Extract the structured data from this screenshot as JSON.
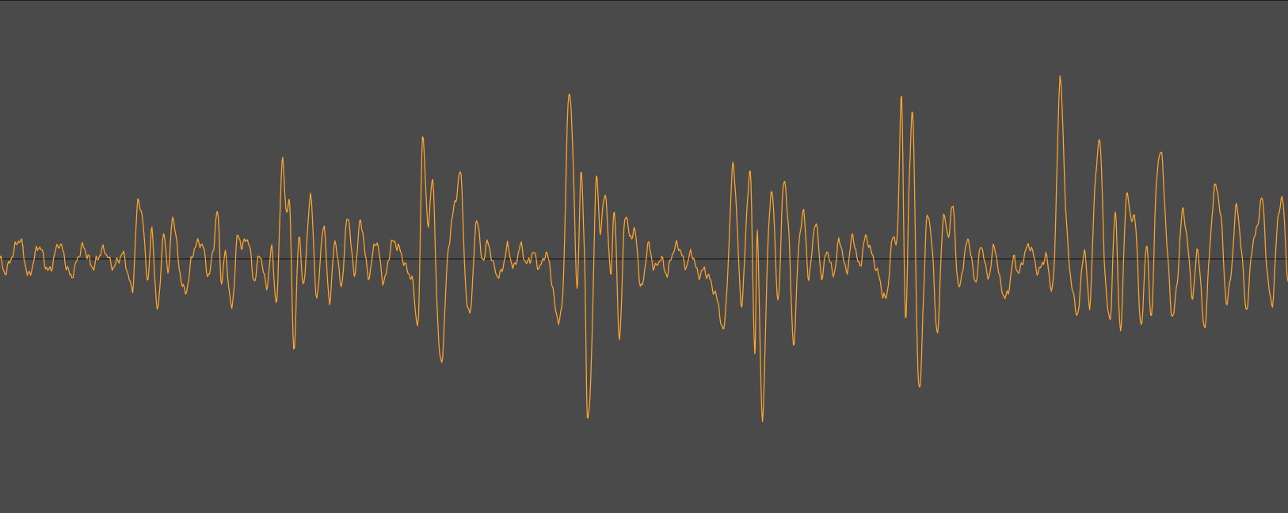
{
  "waveform": {
    "background_color": "#4a4a4a",
    "waveform_color": "#ffa52e",
    "zero_line_color": "#111111",
    "amplitude_range": [
      -1,
      1
    ],
    "keypoints": [
      [
        0.0,
        0.0
      ],
      [
        0.004,
        -0.07
      ],
      [
        0.01,
        0.03
      ],
      [
        0.016,
        0.1
      ],
      [
        0.022,
        -0.09
      ],
      [
        0.03,
        0.07
      ],
      [
        0.038,
        -0.07
      ],
      [
        0.046,
        0.08
      ],
      [
        0.055,
        -0.09
      ],
      [
        0.064,
        0.06
      ],
      [
        0.072,
        -0.04
      ],
      [
        0.08,
        0.05
      ],
      [
        0.088,
        -0.04
      ],
      [
        0.096,
        0.02
      ],
      [
        0.103,
        -0.15
      ],
      [
        0.107,
        0.3
      ],
      [
        0.111,
        0.18
      ],
      [
        0.115,
        -0.11
      ],
      [
        0.118,
        0.16
      ],
      [
        0.122,
        -0.28
      ],
      [
        0.127,
        0.12
      ],
      [
        0.131,
        -0.06
      ],
      [
        0.134,
        0.23
      ],
      [
        0.139,
        -0.04
      ],
      [
        0.144,
        -0.18
      ],
      [
        0.15,
        0.04
      ],
      [
        0.157,
        0.08
      ],
      [
        0.162,
        -0.09
      ],
      [
        0.166,
        0.08
      ],
      [
        0.169,
        0.24
      ],
      [
        0.172,
        -0.12
      ],
      [
        0.175,
        0.03
      ],
      [
        0.18,
        -0.27
      ],
      [
        0.184,
        0.1
      ],
      [
        0.188,
        0.07
      ],
      [
        0.193,
        0.1
      ],
      [
        0.197,
        -0.11
      ],
      [
        0.202,
        0.02
      ],
      [
        0.207,
        -0.15
      ],
      [
        0.211,
        0.05
      ],
      [
        0.215,
        -0.22
      ],
      [
        0.219,
        0.53
      ],
      [
        0.222,
        0.25
      ],
      [
        0.225,
        0.28
      ],
      [
        0.228,
        -0.48
      ],
      [
        0.232,
        0.1
      ],
      [
        0.236,
        -0.14
      ],
      [
        0.241,
        0.34
      ],
      [
        0.246,
        -0.21
      ],
      [
        0.251,
        0.18
      ],
      [
        0.256,
        -0.22
      ],
      [
        0.26,
        0.1
      ],
      [
        0.265,
        -0.14
      ],
      [
        0.27,
        0.23
      ],
      [
        0.275,
        -0.08
      ],
      [
        0.28,
        0.2
      ],
      [
        0.286,
        -0.09
      ],
      [
        0.292,
        0.1
      ],
      [
        0.298,
        -0.12
      ],
      [
        0.304,
        0.08
      ],
      [
        0.31,
        0.05
      ],
      [
        0.316,
        -0.06
      ],
      [
        0.32,
        -0.11
      ],
      [
        0.325,
        -0.31
      ],
      [
        0.328,
        0.66
      ],
      [
        0.332,
        0.18
      ],
      [
        0.336,
        0.41
      ],
      [
        0.34,
        -0.35
      ],
      [
        0.343,
        -0.55
      ],
      [
        0.347,
        -0.06
      ],
      [
        0.35,
        0.17
      ],
      [
        0.354,
        0.32
      ],
      [
        0.358,
        0.43
      ],
      [
        0.362,
        -0.21
      ],
      [
        0.366,
        -0.22
      ],
      [
        0.37,
        0.22
      ],
      [
        0.374,
        0.0
      ],
      [
        0.379,
        0.08
      ],
      [
        0.384,
        -0.06
      ],
      [
        0.389,
        -0.08
      ],
      [
        0.394,
        0.06
      ],
      [
        0.399,
        -0.05
      ],
      [
        0.404,
        0.07
      ],
      [
        0.409,
        -0.03
      ],
      [
        0.414,
        0.03
      ],
      [
        0.419,
        -0.05
      ],
      [
        0.424,
        0.03
      ],
      [
        0.428,
        -0.09
      ],
      [
        0.432,
        -0.3
      ],
      [
        0.437,
        -0.19
      ],
      [
        0.441,
        0.8
      ],
      [
        0.444,
        0.72
      ],
      [
        0.448,
        -0.15
      ],
      [
        0.451,
        0.44
      ],
      [
        0.454,
        -0.02
      ],
      [
        0.456,
        -0.85
      ],
      [
        0.459,
        -0.55
      ],
      [
        0.463,
        0.43
      ],
      [
        0.466,
        0.14
      ],
      [
        0.47,
        0.36
      ],
      [
        0.474,
        -0.08
      ],
      [
        0.477,
        0.25
      ],
      [
        0.481,
        -0.42
      ],
      [
        0.485,
        0.22
      ],
      [
        0.489,
        0.11
      ],
      [
        0.493,
        0.14
      ],
      [
        0.498,
        -0.16
      ],
      [
        0.503,
        0.07
      ],
      [
        0.508,
        -0.05
      ],
      [
        0.513,
        0.0
      ],
      [
        0.518,
        -0.08
      ],
      [
        0.522,
        0.03
      ],
      [
        0.527,
        0.07
      ],
      [
        0.532,
        -0.04
      ],
      [
        0.537,
        0.03
      ],
      [
        0.542,
        -0.08
      ],
      [
        0.547,
        -0.06
      ],
      [
        0.552,
        -0.13
      ],
      [
        0.558,
        -0.25
      ],
      [
        0.562,
        -0.38
      ],
      [
        0.566,
        0.06
      ],
      [
        0.569,
        0.52
      ],
      [
        0.572,
        0.2
      ],
      [
        0.576,
        -0.25
      ],
      [
        0.58,
        0.28
      ],
      [
        0.583,
        0.4
      ],
      [
        0.586,
        -0.5
      ],
      [
        0.588,
        0.12
      ],
      [
        0.592,
        -0.87
      ],
      [
        0.596,
        0.05
      ],
      [
        0.6,
        0.34
      ],
      [
        0.604,
        -0.24
      ],
      [
        0.608,
        0.38
      ],
      [
        0.612,
        0.2
      ],
      [
        0.616,
        -0.45
      ],
      [
        0.62,
        0.05
      ],
      [
        0.624,
        0.24
      ],
      [
        0.628,
        -0.1
      ],
      [
        0.633,
        0.2
      ],
      [
        0.638,
        -0.09
      ],
      [
        0.642,
        0.05
      ],
      [
        0.647,
        -0.08
      ],
      [
        0.652,
        0.1
      ],
      [
        0.657,
        -0.07
      ],
      [
        0.662,
        0.12
      ],
      [
        0.667,
        -0.04
      ],
      [
        0.672,
        0.11
      ],
      [
        0.677,
        0.02
      ],
      [
        0.682,
        -0.09
      ],
      [
        0.688,
        -0.21
      ],
      [
        0.693,
        0.11
      ],
      [
        0.697,
        0.15
      ],
      [
        0.7,
        0.88
      ],
      [
        0.703,
        -0.34
      ],
      [
        0.706,
        0.45
      ],
      [
        0.709,
        0.72
      ],
      [
        0.712,
        -0.4
      ],
      [
        0.714,
        -0.71
      ],
      [
        0.717,
        -0.2
      ],
      [
        0.72,
        0.24
      ],
      [
        0.724,
        0.02
      ],
      [
        0.728,
        -0.4
      ],
      [
        0.732,
        0.21
      ],
      [
        0.736,
        0.12
      ],
      [
        0.74,
        0.27
      ],
      [
        0.744,
        -0.15
      ],
      [
        0.748,
        -0.02
      ],
      [
        0.752,
        0.1
      ],
      [
        0.757,
        -0.12
      ],
      [
        0.762,
        0.07
      ],
      [
        0.767,
        -0.1
      ],
      [
        0.772,
        0.06
      ],
      [
        0.777,
        -0.14
      ],
      [
        0.782,
        -0.2
      ],
      [
        0.787,
        0.0
      ],
      [
        0.791,
        -0.08
      ],
      [
        0.795,
        0.02
      ],
      [
        0.8,
        0.07
      ],
      [
        0.806,
        -0.07
      ],
      [
        0.812,
        0.01
      ],
      [
        0.818,
        -0.11
      ],
      [
        0.823,
        0.95
      ],
      [
        0.828,
        0.18
      ],
      [
        0.833,
        -0.18
      ],
      [
        0.837,
        -0.28
      ],
      [
        0.842,
        0.05
      ],
      [
        0.846,
        -0.25
      ],
      [
        0.85,
        0.36
      ],
      [
        0.854,
        0.62
      ],
      [
        0.858,
        -0.08
      ],
      [
        0.862,
        -0.31
      ],
      [
        0.866,
        0.24
      ],
      [
        0.87,
        -0.4
      ],
      [
        0.874,
        0.3
      ],
      [
        0.878,
        0.23
      ],
      [
        0.882,
        0.15
      ],
      [
        0.886,
        -0.38
      ],
      [
        0.89,
        0.08
      ],
      [
        0.894,
        -0.3
      ],
      [
        0.898,
        0.43
      ],
      [
        0.902,
        0.54
      ],
      [
        0.906,
        0.08
      ],
      [
        0.91,
        -0.3
      ],
      [
        0.914,
        -0.12
      ],
      [
        0.918,
        0.25
      ],
      [
        0.922,
        0.08
      ],
      [
        0.926,
        -0.2
      ],
      [
        0.93,
        0.05
      ],
      [
        0.935,
        -0.37
      ],
      [
        0.939,
        0.02
      ],
      [
        0.943,
        0.38
      ],
      [
        0.948,
        0.22
      ],
      [
        0.952,
        -0.22
      ],
      [
        0.956,
        -0.06
      ],
      [
        0.96,
        0.28
      ],
      [
        0.964,
        0.03
      ],
      [
        0.968,
        -0.27
      ],
      [
        0.972,
        0.06
      ],
      [
        0.976,
        0.16
      ],
      [
        0.98,
        0.32
      ],
      [
        0.984,
        -0.08
      ],
      [
        0.988,
        -0.23
      ],
      [
        0.992,
        0.2
      ],
      [
        0.996,
        0.3
      ],
      [
        1.0,
        -0.12
      ]
    ]
  }
}
